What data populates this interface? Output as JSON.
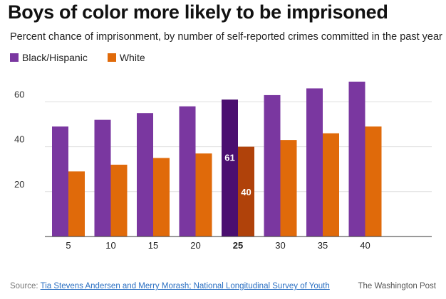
{
  "title": "Boys of color more likely to be imprisoned",
  "subtitle": "Percent chance of imprisonment, by number of self-reported crimes committed in the past year",
  "colors": {
    "black_hispanic": "#7a37a0",
    "white": "#e06a0a",
    "highlight_black_hispanic": "#4b0f70",
    "highlight_white": "#b0420a",
    "grid": "#dddddd",
    "axis": "#333333"
  },
  "chart_data": {
    "type": "bar",
    "categories": [
      "5",
      "10",
      "15",
      "20",
      "25",
      "30",
      "35",
      "40"
    ],
    "series": [
      {
        "name": "Black/Hispanic",
        "values": [
          49,
          52,
          55,
          58,
          61,
          63,
          66,
          69
        ]
      },
      {
        "name": "White",
        "values": [
          29,
          32,
          35,
          37,
          40,
          43,
          46,
          49
        ]
      }
    ],
    "highlight_category": "25",
    "data_labels": [
      "61",
      "40"
    ],
    "yticks": [
      20,
      40,
      60
    ],
    "ylim": [
      0,
      75
    ],
    "grid": true,
    "legend": "top-left"
  },
  "footer": {
    "source_prefix": "Source: ",
    "source_link": "Tia Stevens Andersen and Merry Morash; National Longitudinal Survey of Youth",
    "credit": "The Washington Post"
  }
}
